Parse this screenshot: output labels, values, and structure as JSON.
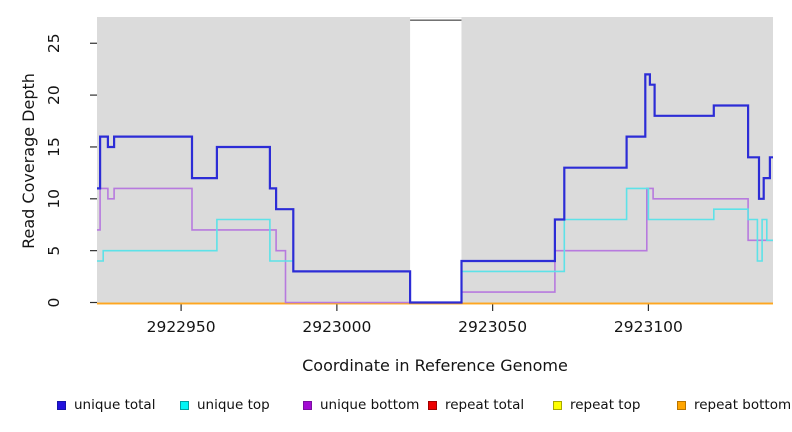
{
  "chart_data": {
    "type": "line",
    "subtype": "step",
    "title": "",
    "xlabel": "Coordinate in Reference Genome",
    "ylabel": "Read Coverage Depth",
    "xlim": [
      2922923,
      2923140
    ],
    "ylim": [
      0,
      27.5
    ],
    "x_ticks": [
      2922950,
      2923000,
      2923050,
      2923100
    ],
    "y_ticks": [
      0,
      5,
      10,
      15,
      20,
      25
    ],
    "grid": "off",
    "legend_position": "bottom",
    "plot_bg": "#dbdbdb",
    "tick_color": "#2f2f2f",
    "text_color": "#141414",
    "gap_region": {
      "x0": 2923023.5,
      "x1": 2923040,
      "fill": "#ffffff",
      "top_border_color": "#5f5f5f"
    },
    "series": [
      {
        "name": "unique total",
        "color": "#2c2cd6",
        "line_width": 2.2,
        "steps": [
          [
            2922923,
            11
          ],
          [
            2922924,
            16
          ],
          [
            2922926.5,
            15
          ],
          [
            2922928.5,
            16
          ],
          [
            2922953.5,
            12
          ],
          [
            2922961.5,
            15
          ],
          [
            2922978.5,
            11
          ],
          [
            2922980.5,
            9
          ],
          [
            2922986,
            3
          ],
          [
            2923023.5,
            0
          ],
          [
            2923040,
            4
          ],
          [
            2923070,
            8
          ],
          [
            2923073,
            13
          ],
          [
            2923093,
            16
          ],
          [
            2923099,
            22
          ],
          [
            2923100.5,
            21
          ],
          [
            2923102,
            18
          ],
          [
            2923121,
            19
          ],
          [
            2923132,
            14
          ],
          [
            2923135.5,
            10
          ],
          [
            2923137,
            12
          ],
          [
            2923139,
            14
          ],
          [
            2923140,
            14
          ]
        ]
      },
      {
        "name": "unique top",
        "color": "#5de2e8",
        "line_width": 1.6,
        "steps": [
          [
            2922923,
            4
          ],
          [
            2922925,
            5
          ],
          [
            2922961.5,
            8
          ],
          [
            2922978.5,
            4
          ],
          [
            2922986,
            3
          ],
          [
            2923023.5,
            0
          ],
          [
            2923040,
            3
          ],
          [
            2923073,
            8
          ],
          [
            2923093,
            11
          ],
          [
            2923100,
            8
          ],
          [
            2923121,
            9
          ],
          [
            2923132,
            8
          ],
          [
            2923135,
            4
          ],
          [
            2923136.5,
            8
          ],
          [
            2923138,
            6
          ],
          [
            2923140,
            6
          ]
        ]
      },
      {
        "name": "unique bottom",
        "color": "#b77ade",
        "line_width": 1.6,
        "steps": [
          [
            2922923,
            7
          ],
          [
            2922924,
            11
          ],
          [
            2922926.5,
            10
          ],
          [
            2922928.5,
            11
          ],
          [
            2922953.5,
            7
          ],
          [
            2922980.5,
            5
          ],
          [
            2922983.5,
            0
          ],
          [
            2923040,
            1
          ],
          [
            2923070,
            5
          ],
          [
            2923099.5,
            11
          ],
          [
            2923101.5,
            10
          ],
          [
            2923132,
            6
          ],
          [
            2923140,
            6
          ]
        ]
      },
      {
        "name": "repeat total",
        "color": "#dd2222",
        "line_width": 1.6,
        "steps": [
          [
            2922923,
            0
          ],
          [
            2923140,
            0
          ]
        ]
      },
      {
        "name": "repeat top",
        "color": "#ffe800",
        "line_width": 1.6,
        "steps": [
          [
            2922923,
            0
          ],
          [
            2923140,
            0
          ]
        ]
      },
      {
        "name": "repeat bottom",
        "color": "#ffa520",
        "line_width": 1.6,
        "steps": [
          [
            2922923,
            0
          ],
          [
            2923140,
            0
          ]
        ]
      }
    ],
    "legend": [
      {
        "label": "unique total",
        "fill": "#2211dd",
        "border": "#1414aa"
      },
      {
        "label": "unique top",
        "fill": "#00f5f5",
        "border": "#00a0a0"
      },
      {
        "label": "unique bottom",
        "fill": "#a30bd3",
        "border": "#7a10a0"
      },
      {
        "label": "repeat total",
        "fill": "#ec0000",
        "border": "#a00000"
      },
      {
        "label": "repeat top",
        "fill": "#ffff00",
        "border": "#a8a800"
      },
      {
        "label": "repeat bottom",
        "fill": "#ffa500",
        "border": "#b87400"
      }
    ]
  }
}
